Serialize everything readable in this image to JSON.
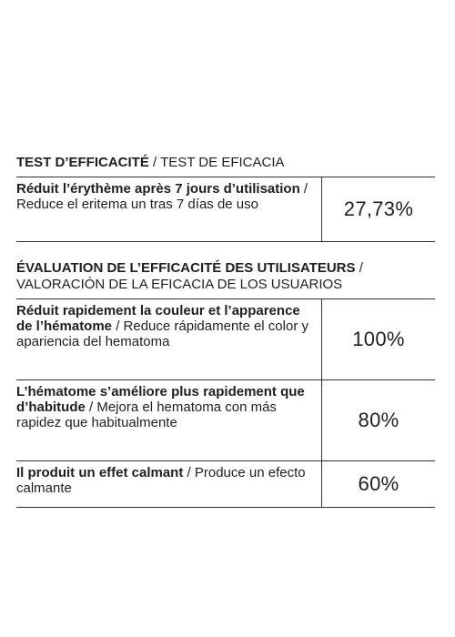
{
  "test": {
    "title_fr": "TEST D’EFFICACITÉ",
    "title_es": "/ TEST DE EFICACIA",
    "rows": [
      {
        "fr": "Réduit l’érythème après 7 jours d’utilisation",
        "es": "/ Reduce el eritema un tras 7 días de uso",
        "value": "27,73%"
      }
    ]
  },
  "evaluation": {
    "title_fr": "ÉVALUATION DE L’EFFICACITÉ DES UTILISATEURS",
    "title_es": "/ VALORACIÓN DE LA EFICACIA DE LOS USUARIOS",
    "rows": [
      {
        "fr": "Réduit rapidement la couleur et l’apparence de l’hématome",
        "es": "/ Reduce rápidamente el color y apariencia del hematoma",
        "value": "100%"
      },
      {
        "fr": "L’hématome s’améliore plus rapidement que d’habitude",
        "es": "/ Mejora el hematoma con más rapidez que habitualmente",
        "value": "80%"
      },
      {
        "fr": "Il produit un effet calmant",
        "es": "/ Produce un efecto calmante",
        "value": "60%"
      }
    ]
  }
}
